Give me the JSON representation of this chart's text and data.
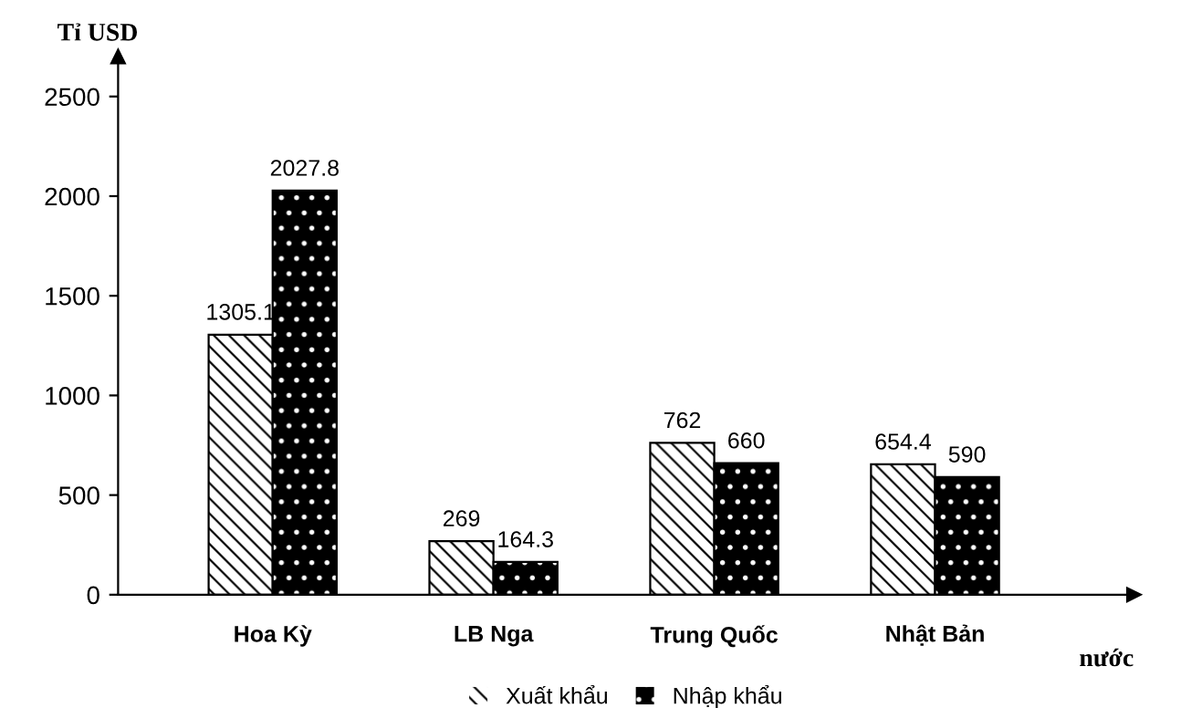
{
  "chart_data": {
    "type": "bar",
    "ylabel": "Tỉ USD",
    "xlabel": "nước",
    "categories": [
      "Hoa Kỳ",
      "LB Nga",
      "Trung Quốc",
      "Nhật Bản"
    ],
    "series": [
      {
        "name": "Xuất khẩu",
        "color": "#ffffff",
        "values": [
          1305.1,
          269,
          762,
          654.4
        ]
      },
      {
        "name": "Nhập khẩu",
        "color": "#000000",
        "values": [
          2027.8,
          164.3,
          660,
          590
        ]
      }
    ],
    "ylim": [
      0,
      2700
    ],
    "yticks": [
      0,
      500,
      1000,
      1500,
      2000,
      2500
    ],
    "grid": false,
    "legend": "bottom",
    "data_labels": true
  }
}
